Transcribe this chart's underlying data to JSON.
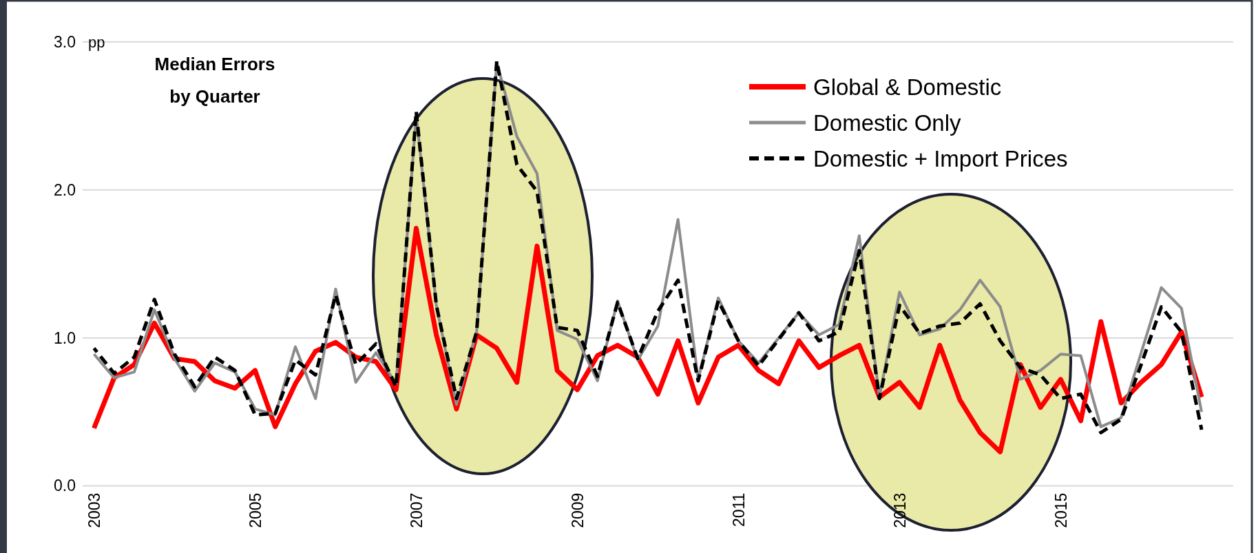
{
  "chart_data": {
    "type": "line",
    "title": "Median Errors\nby Quarter",
    "ylabel": "pp",
    "categories": [
      "2003",
      null,
      null,
      null,
      null,
      null,
      null,
      null,
      "2005",
      null,
      null,
      null,
      null,
      null,
      null,
      null,
      "2007",
      null,
      null,
      null,
      null,
      null,
      null,
      null,
      "2009",
      null,
      null,
      null,
      null,
      null,
      null,
      null,
      "2011",
      null,
      null,
      null,
      null,
      null,
      null,
      null,
      "2013",
      null,
      null,
      null,
      null,
      null,
      null,
      null,
      "2015",
      null,
      null,
      null,
      null,
      null,
      null,
      null
    ],
    "ylim": [
      0,
      3
    ],
    "yticks": [
      {
        "value": 0,
        "label": "0.0"
      },
      {
        "value": 1,
        "label": "1.0"
      },
      {
        "value": 2,
        "label": "2.0"
      },
      {
        "value": 3,
        "label": "3.0"
      }
    ],
    "grid": "y",
    "legend": "top right",
    "line_style": "solid",
    "marker": "none",
    "series": [
      {
        "name": "Global & Domestic",
        "color": "#ff0000",
        "values": [
          0.39,
          0.73,
          0.82,
          1.1,
          0.86,
          0.84,
          0.71,
          0.66,
          0.78,
          0.4,
          0.69,
          0.91,
          0.97,
          0.87,
          0.84,
          0.65,
          1.74,
          1.02,
          0.52,
          1.02,
          0.93,
          0.7,
          1.62,
          0.78,
          0.65,
          0.88,
          0.95,
          0.87,
          0.62,
          0.98,
          0.56,
          0.87,
          0.95,
          0.78,
          0.69,
          0.98,
          0.8,
          0.88,
          0.95,
          0.6,
          0.7,
          0.53,
          0.95,
          0.58,
          0.36,
          0.23,
          0.82,
          0.53,
          0.72,
          0.44,
          1.11,
          0.56,
          0.7,
          0.82,
          1.04,
          0.6
        ]
      },
      {
        "name": "Domestic Only",
        "color": "#8c8c8c",
        "values": [
          0.89,
          0.73,
          0.77,
          1.19,
          0.86,
          0.64,
          0.83,
          0.77,
          0.52,
          0.48,
          0.94,
          0.59,
          1.33,
          0.7,
          0.9,
          0.69,
          2.51,
          1.22,
          0.55,
          1.04,
          2.86,
          2.36,
          2.11,
          1.05,
          0.99,
          0.71,
          1.25,
          0.85,
          1.08,
          1.8,
          0.72,
          1.27,
          0.98,
          0.83,
          1.0,
          1.17,
          1.02,
          1.09,
          1.69,
          0.6,
          1.31,
          1.02,
          1.06,
          1.19,
          1.39,
          1.21,
          0.72,
          0.78,
          0.89,
          0.88,
          0.4,
          0.46,
          0.9,
          1.34,
          1.2,
          0.5
        ]
      },
      {
        "name": "Domestic + Import Prices",
        "color": "#000000",
        "line_style": "dashed",
        "values": [
          0.93,
          0.76,
          0.87,
          1.26,
          0.89,
          0.67,
          0.87,
          0.78,
          0.48,
          0.49,
          0.85,
          0.75,
          1.29,
          0.82,
          0.96,
          0.67,
          2.53,
          1.22,
          0.59,
          1.04,
          2.87,
          2.17,
          1.99,
          1.07,
          1.05,
          0.74,
          1.24,
          0.86,
          1.18,
          1.39,
          0.71,
          1.25,
          0.98,
          0.81,
          0.99,
          1.17,
          0.98,
          1.04,
          1.59,
          0.59,
          1.22,
          1.03,
          1.08,
          1.1,
          1.23,
          0.98,
          0.8,
          0.75,
          0.59,
          0.62,
          0.36,
          0.45,
          0.82,
          1.21,
          1.04,
          0.38
        ]
      }
    ]
  }
}
